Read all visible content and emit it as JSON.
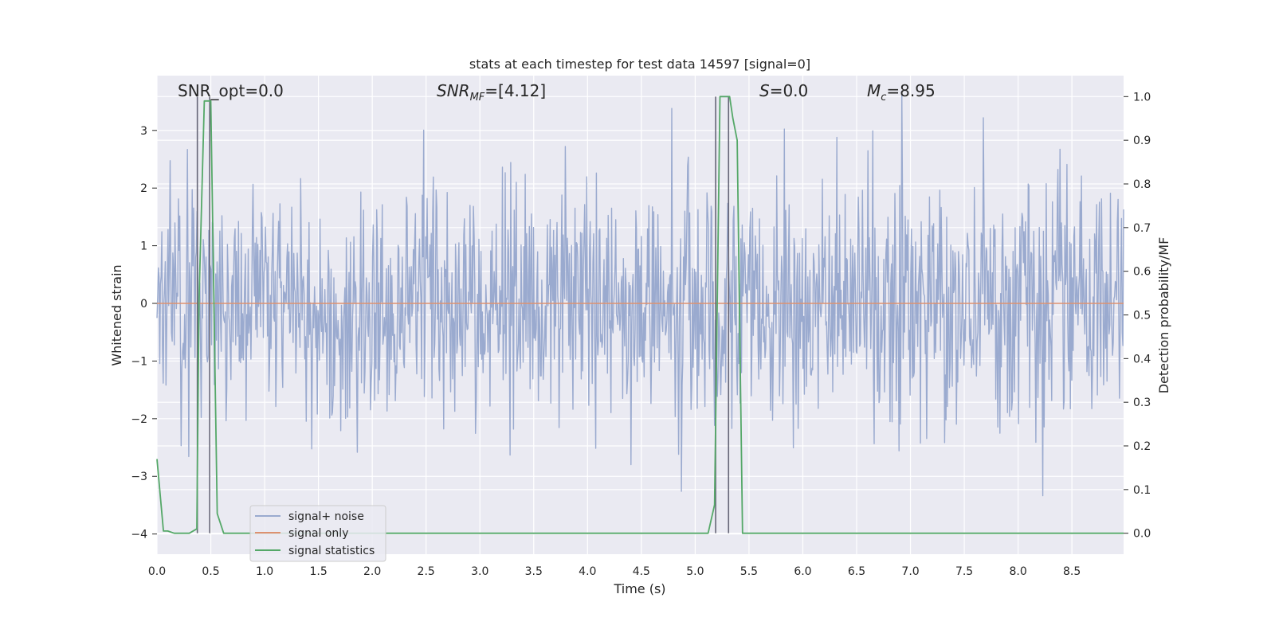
{
  "chart_data": {
    "type": "line",
    "title": "stats at each timestep for test data 14597 [signal=0]",
    "xlabel": "Time (s)",
    "ylabel_left": "Whitened strain",
    "ylabel_right": "Detection probability/MF",
    "xlim": [
      0,
      8.98
    ],
    "ylim_left": [
      -4.35,
      3.95
    ],
    "ylim_right": [
      -0.048,
      1.048
    ],
    "x_ticks": [
      "0.0",
      "0.5",
      "1.0",
      "1.5",
      "2.0",
      "2.5",
      "3.0",
      "3.5",
      "4.0",
      "4.5",
      "5.0",
      "5.5",
      "6.0",
      "6.5",
      "7.0",
      "7.5",
      "8.0",
      "8.5"
    ],
    "y_ticks_left": [
      "3",
      "2",
      "1",
      "0",
      "−1",
      "−2",
      "−3",
      "−4"
    ],
    "y_ticks_right": [
      "1.0",
      "0.9",
      "0.8",
      "0.7",
      "0.6",
      "0.5",
      "0.4",
      "0.3",
      "0.2",
      "0.1",
      "0.0"
    ],
    "grid": true,
    "legend_position": "lower-left",
    "annotations": [
      {
        "text": "SNR_opt=0.0"
      },
      {
        "text": "SNR",
        "sub": "MF",
        "rest": "=[4.12]"
      },
      {
        "text": "S",
        "rest": "=0.0"
      },
      {
        "text": "M",
        "sub": "c",
        "rest": "=8.95"
      }
    ],
    "series": [
      {
        "name": "signal+ noise",
        "color": "#9aaacf",
        "axis": "left",
        "kind": "noise",
        "std": 1.0,
        "abs_max": 4.0,
        "n_samples": 1400
      },
      {
        "name": "signal only",
        "color": "#dd9170",
        "axis": "left",
        "x": [
          0,
          8.98
        ],
        "y": [
          0,
          0
        ]
      },
      {
        "name": "signal statistics",
        "color": "#55a868",
        "axis": "right",
        "x": [
          0.0,
          0.06,
          0.1,
          0.16,
          0.3,
          0.37,
          0.39,
          0.44,
          0.5,
          0.56,
          0.62,
          0.7,
          5.12,
          5.18,
          5.23,
          5.26,
          5.32,
          5.35,
          5.39,
          5.44,
          8.98
        ],
        "y": [
          0.17,
          0.005,
          0.005,
          0.0,
          0.0,
          0.01,
          0.53,
          0.99,
          0.99,
          0.045,
          0.0,
          0.0,
          0.0,
          0.065,
          1.0,
          1.0,
          1.0,
          0.95,
          0.9,
          0.0,
          0.0
        ]
      }
    ],
    "vertical_lines": [
      0.375,
      0.49,
      5.19,
      5.31
    ]
  }
}
